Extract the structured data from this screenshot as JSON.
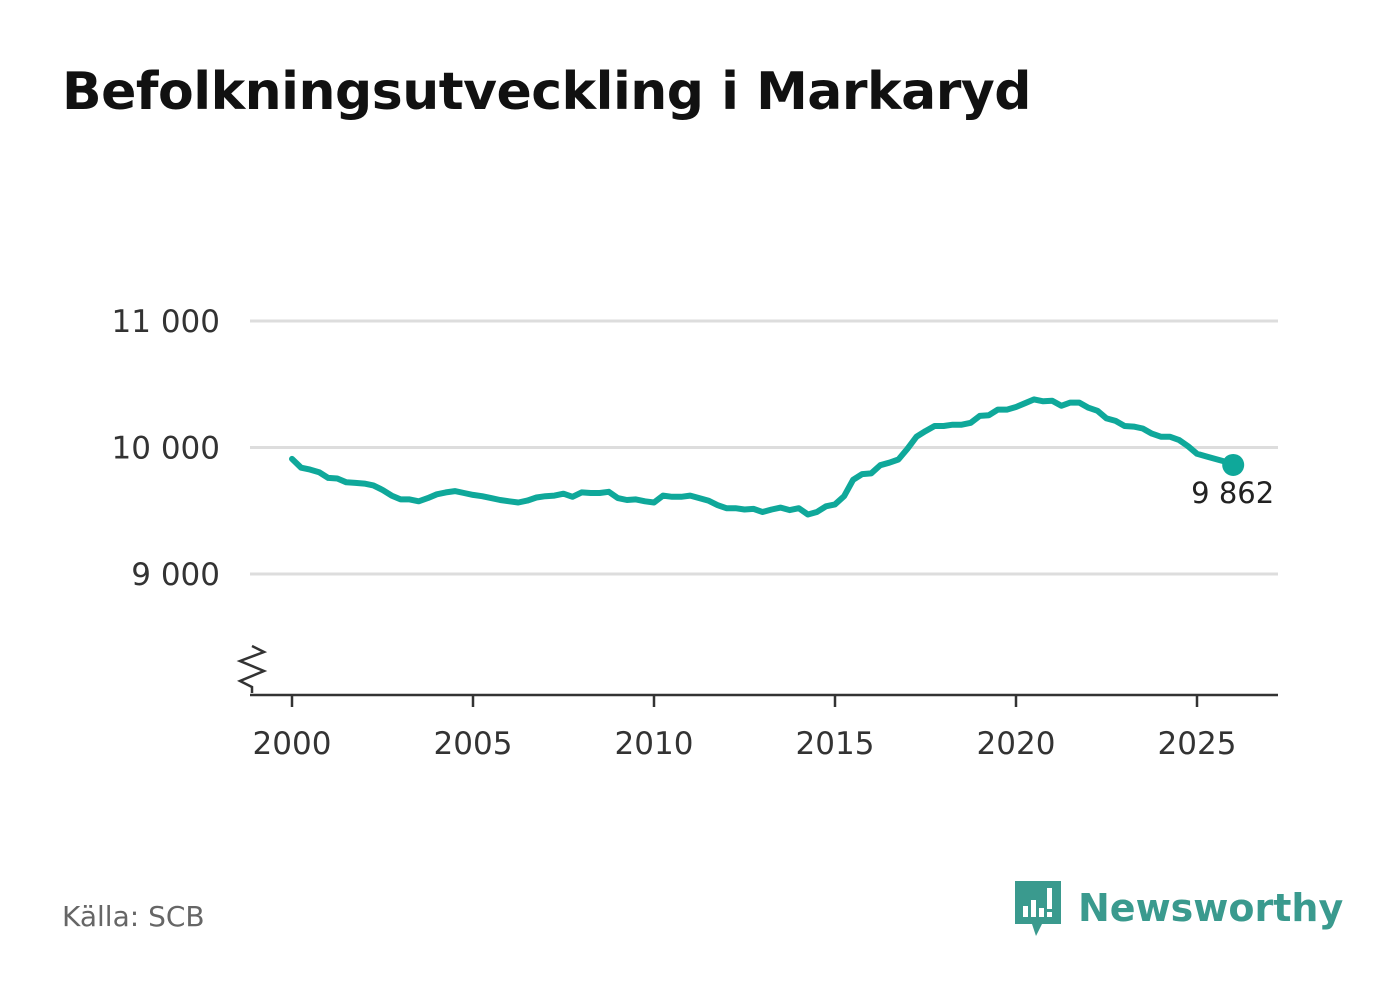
{
  "title": "Befolkningsutveckling i Markaryd",
  "source": "Källa: SCB",
  "brand": "Newsworthy",
  "colors": {
    "line": "#0fa89a",
    "grid": "#dddddd",
    "axis": "#333333",
    "brand": "#3a9a8e"
  },
  "chart_data": {
    "type": "line",
    "title": "Befolkningsutveckling i Markaryd",
    "xlabel": "",
    "ylabel": "",
    "xlim": [
      1999.4,
      2027.2
    ],
    "ylim": [
      8500,
      11000
    ],
    "axis_break": true,
    "grid": true,
    "x_ticks": [
      2000,
      2005,
      2010,
      2015,
      2020,
      2025
    ],
    "x_tick_labels": [
      "2000",
      "2005",
      "2010",
      "2015",
      "2020",
      "2025"
    ],
    "y_ticks": [
      9000,
      10000,
      11000
    ],
    "y_tick_labels": [
      "9 000",
      "10 000",
      "11 000"
    ],
    "end_label": "9 862",
    "series": [
      {
        "name": "Befolkning",
        "x": [
          2000.0,
          2000.25,
          2000.5,
          2000.75,
          2001.0,
          2001.25,
          2001.5,
          2001.75,
          2002.0,
          2002.25,
          2002.5,
          2002.75,
          2003.0,
          2003.25,
          2003.5,
          2003.75,
          2004.0,
          2004.25,
          2004.5,
          2004.75,
          2005.0,
          2005.25,
          2005.5,
          2005.75,
          2006.0,
          2006.25,
          2006.5,
          2006.75,
          2007.0,
          2007.25,
          2007.5,
          2007.75,
          2008.0,
          2008.25,
          2008.5,
          2008.75,
          2009.0,
          2009.25,
          2009.5,
          2009.75,
          2010.0,
          2010.25,
          2010.5,
          2010.75,
          2011.0,
          2011.25,
          2011.5,
          2011.75,
          2012.0,
          2012.25,
          2012.5,
          2012.75,
          2013.0,
          2013.25,
          2013.5,
          2013.75,
          2014.0,
          2014.25,
          2014.5,
          2014.75,
          2015.0,
          2015.25,
          2015.5,
          2015.75,
          2016.0,
          2016.25,
          2016.5,
          2016.75,
          2017.0,
          2017.25,
          2017.5,
          2017.75,
          2018.0,
          2018.25,
          2018.5,
          2018.75,
          2019.0,
          2019.25,
          2019.5,
          2019.75,
          2020.0,
          2020.25,
          2020.5,
          2020.75,
          2021.0,
          2021.25,
          2021.5,
          2021.75,
          2022.0,
          2022.25,
          2022.5,
          2022.75,
          2023.0,
          2023.25,
          2023.5,
          2023.75,
          2024.0,
          2024.25,
          2024.5,
          2024.75,
          2025.0,
          2025.25,
          2025.5,
          2025.75,
          2026.0
        ],
        "values": [
          9910,
          9840,
          9825,
          9805,
          9760,
          9755,
          9725,
          9720,
          9715,
          9700,
          9665,
          9620,
          9590,
          9590,
          9575,
          9600,
          9630,
          9645,
          9655,
          9640,
          9625,
          9615,
          9600,
          9585,
          9575,
          9565,
          9580,
          9605,
          9615,
          9620,
          9635,
          9610,
          9645,
          9640,
          9640,
          9650,
          9600,
          9585,
          9590,
          9575,
          9565,
          9620,
          9610,
          9610,
          9620,
          9600,
          9580,
          9545,
          9520,
          9520,
          9510,
          9515,
          9490,
          9510,
          9525,
          9505,
          9520,
          9470,
          9490,
          9535,
          9550,
          9615,
          9745,
          9790,
          9795,
          9860,
          9880,
          9905,
          9990,
          10085,
          10130,
          10170,
          10170,
          10180,
          10180,
          10195,
          10250,
          10255,
          10300,
          10300,
          10320,
          10350,
          10380,
          10365,
          10370,
          10330,
          10355,
          10355,
          10315,
          10290,
          10230,
          10210,
          10170,
          10165,
          10150,
          10110,
          10085,
          10085,
          10060,
          10010,
          9950,
          9930,
          9910,
          9890,
          9862
        ]
      }
    ]
  }
}
